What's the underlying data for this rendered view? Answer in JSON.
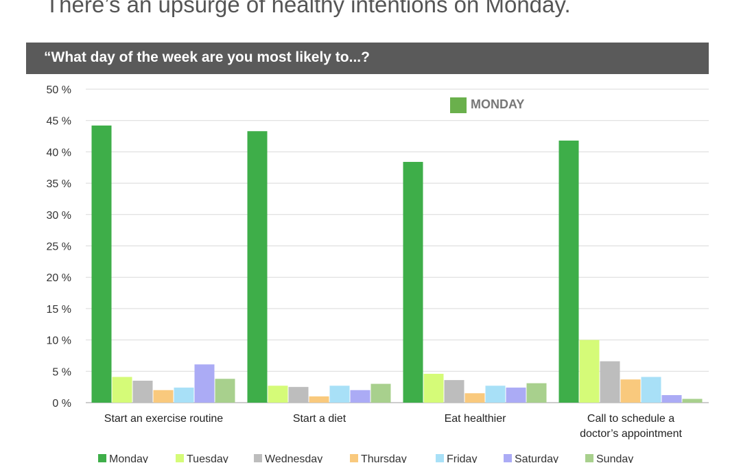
{
  "headline": "There’s an upsurge of healthy intentions on Monday.",
  "banner": "“What day of the week are you most likely to...?",
  "callout": {
    "label": "MONDAY",
    "color": "#6ab04c"
  },
  "chart_data": {
    "type": "bar",
    "title": "“What day of the week are you most likely to...?",
    "categories": [
      [
        "Start an exercise routine"
      ],
      [
        "Start a diet"
      ],
      [
        "Eat healthier"
      ],
      [
        "Call to schedule a",
        "doctor’s appointment"
      ]
    ],
    "series": [
      {
        "name": "Monday",
        "color": "#3eae49",
        "values": [
          44.2,
          43.3,
          38.4,
          41.8
        ]
      },
      {
        "name": "Tuesday",
        "color": "#d5fb78",
        "values": [
          4.1,
          2.7,
          4.6,
          10.0
        ]
      },
      {
        "name": "Wednesday",
        "color": "#bdbdbd",
        "values": [
          3.5,
          2.5,
          3.6,
          6.6
        ]
      },
      {
        "name": "Thursday",
        "color": "#f9c97d",
        "values": [
          2.0,
          1.0,
          1.5,
          3.7
        ]
      },
      {
        "name": "Friday",
        "color": "#a8e0f7",
        "values": [
          2.4,
          2.7,
          2.7,
          4.1
        ]
      },
      {
        "name": "Saturday",
        "color": "#ababf5",
        "values": [
          6.1,
          2.0,
          2.4,
          1.2
        ]
      },
      {
        "name": "Sunday",
        "color": "#a8d08d",
        "values": [
          3.8,
          3.0,
          3.1,
          0.6
        ]
      }
    ],
    "ylim": [
      0,
      50
    ],
    "yticks": [
      0,
      5,
      10,
      15,
      20,
      25,
      30,
      35,
      40,
      45,
      50
    ],
    "ytick_labels": [
      "0 %",
      "5 %",
      "10 %",
      "15 %",
      "20 %",
      "25 %",
      "30 %",
      "35 %",
      "40 %",
      "45 %",
      "50 %"
    ],
    "grid": true,
    "legend": "bottom"
  }
}
